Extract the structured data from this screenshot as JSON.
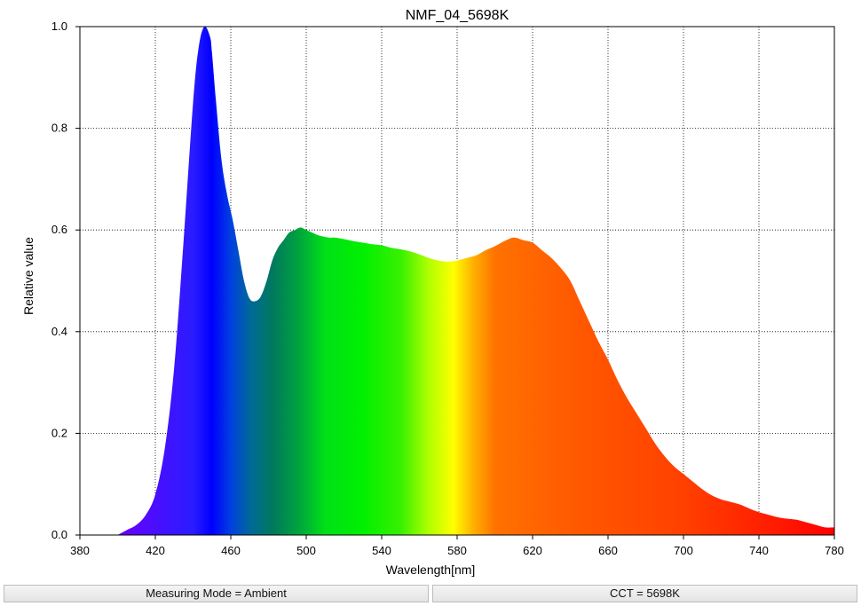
{
  "chart_data": {
    "type": "area",
    "title": "NMF_04_5698K",
    "xlabel": "Wavelength[nm]",
    "ylabel": "Relative value",
    "xlim": [
      380,
      780
    ],
    "ylim": [
      0,
      1.0
    ],
    "x_ticks": [
      "380",
      "420",
      "460",
      "500",
      "540",
      "580",
      "620",
      "660",
      "700",
      "740",
      "780"
    ],
    "y_ticks": [
      "0.0",
      "0.2",
      "0.4",
      "0.6",
      "0.8",
      "1.0"
    ],
    "grid": true,
    "x": [
      400,
      405,
      410,
      415,
      420,
      425,
      430,
      435,
      440,
      443,
      446,
      449,
      450,
      452,
      455,
      458,
      461,
      464,
      467,
      470,
      473,
      476,
      479,
      482,
      485,
      488,
      491,
      494,
      497,
      500,
      503,
      506,
      509,
      512,
      515,
      520,
      525,
      530,
      535,
      540,
      545,
      550,
      555,
      560,
      565,
      570,
      575,
      580,
      585,
      590,
      595,
      600,
      605,
      610,
      615,
      620,
      625,
      630,
      635,
      640,
      645,
      650,
      655,
      660,
      665,
      670,
      675,
      680,
      685,
      690,
      695,
      700,
      705,
      710,
      715,
      720,
      725,
      730,
      735,
      740,
      745,
      750,
      755,
      760,
      765,
      770,
      775,
      780
    ],
    "values": [
      0.0,
      0.01,
      0.02,
      0.04,
      0.08,
      0.17,
      0.33,
      0.58,
      0.85,
      0.96,
      1.0,
      0.98,
      0.95,
      0.86,
      0.74,
      0.67,
      0.62,
      0.56,
      0.5,
      0.465,
      0.46,
      0.47,
      0.5,
      0.54,
      0.565,
      0.58,
      0.595,
      0.6,
      0.605,
      0.6,
      0.595,
      0.59,
      0.587,
      0.585,
      0.585,
      0.582,
      0.578,
      0.575,
      0.572,
      0.57,
      0.565,
      0.562,
      0.558,
      0.552,
      0.545,
      0.54,
      0.538,
      0.54,
      0.545,
      0.55,
      0.56,
      0.568,
      0.578,
      0.585,
      0.58,
      0.575,
      0.56,
      0.545,
      0.525,
      0.5,
      0.46,
      0.42,
      0.38,
      0.345,
      0.305,
      0.27,
      0.24,
      0.21,
      0.18,
      0.155,
      0.135,
      0.12,
      0.105,
      0.09,
      0.078,
      0.07,
      0.065,
      0.06,
      0.052,
      0.045,
      0.04,
      0.035,
      0.032,
      0.03,
      0.025,
      0.02,
      0.015,
      0.015
    ]
  },
  "status_bar": {
    "measuring_mode": "Measuring Mode = Ambient",
    "cct": "CCT = 5698K"
  },
  "colors": {
    "grid": "#000000",
    "axis": "#000000",
    "spectrum_stops": [
      {
        "nm": 400,
        "color": "#6a00ff"
      },
      {
        "nm": 440,
        "color": "#2a1cff"
      },
      {
        "nm": 450,
        "color": "#0000ff"
      },
      {
        "nm": 460,
        "color": "#0040e0"
      },
      {
        "nm": 470,
        "color": "#00689a"
      },
      {
        "nm": 482,
        "color": "#00785e"
      },
      {
        "nm": 495,
        "color": "#00a040"
      },
      {
        "nm": 510,
        "color": "#00e018"
      },
      {
        "nm": 530,
        "color": "#00f000"
      },
      {
        "nm": 550,
        "color": "#38f000"
      },
      {
        "nm": 565,
        "color": "#b0ff00"
      },
      {
        "nm": 578,
        "color": "#ffff00"
      },
      {
        "nm": 588,
        "color": "#ffb400"
      },
      {
        "nm": 600,
        "color": "#ff7200"
      },
      {
        "nm": 640,
        "color": "#ff5a00"
      },
      {
        "nm": 700,
        "color": "#ff4000"
      },
      {
        "nm": 750,
        "color": "#ff1a00"
      },
      {
        "nm": 780,
        "color": "#ff0000"
      }
    ]
  }
}
